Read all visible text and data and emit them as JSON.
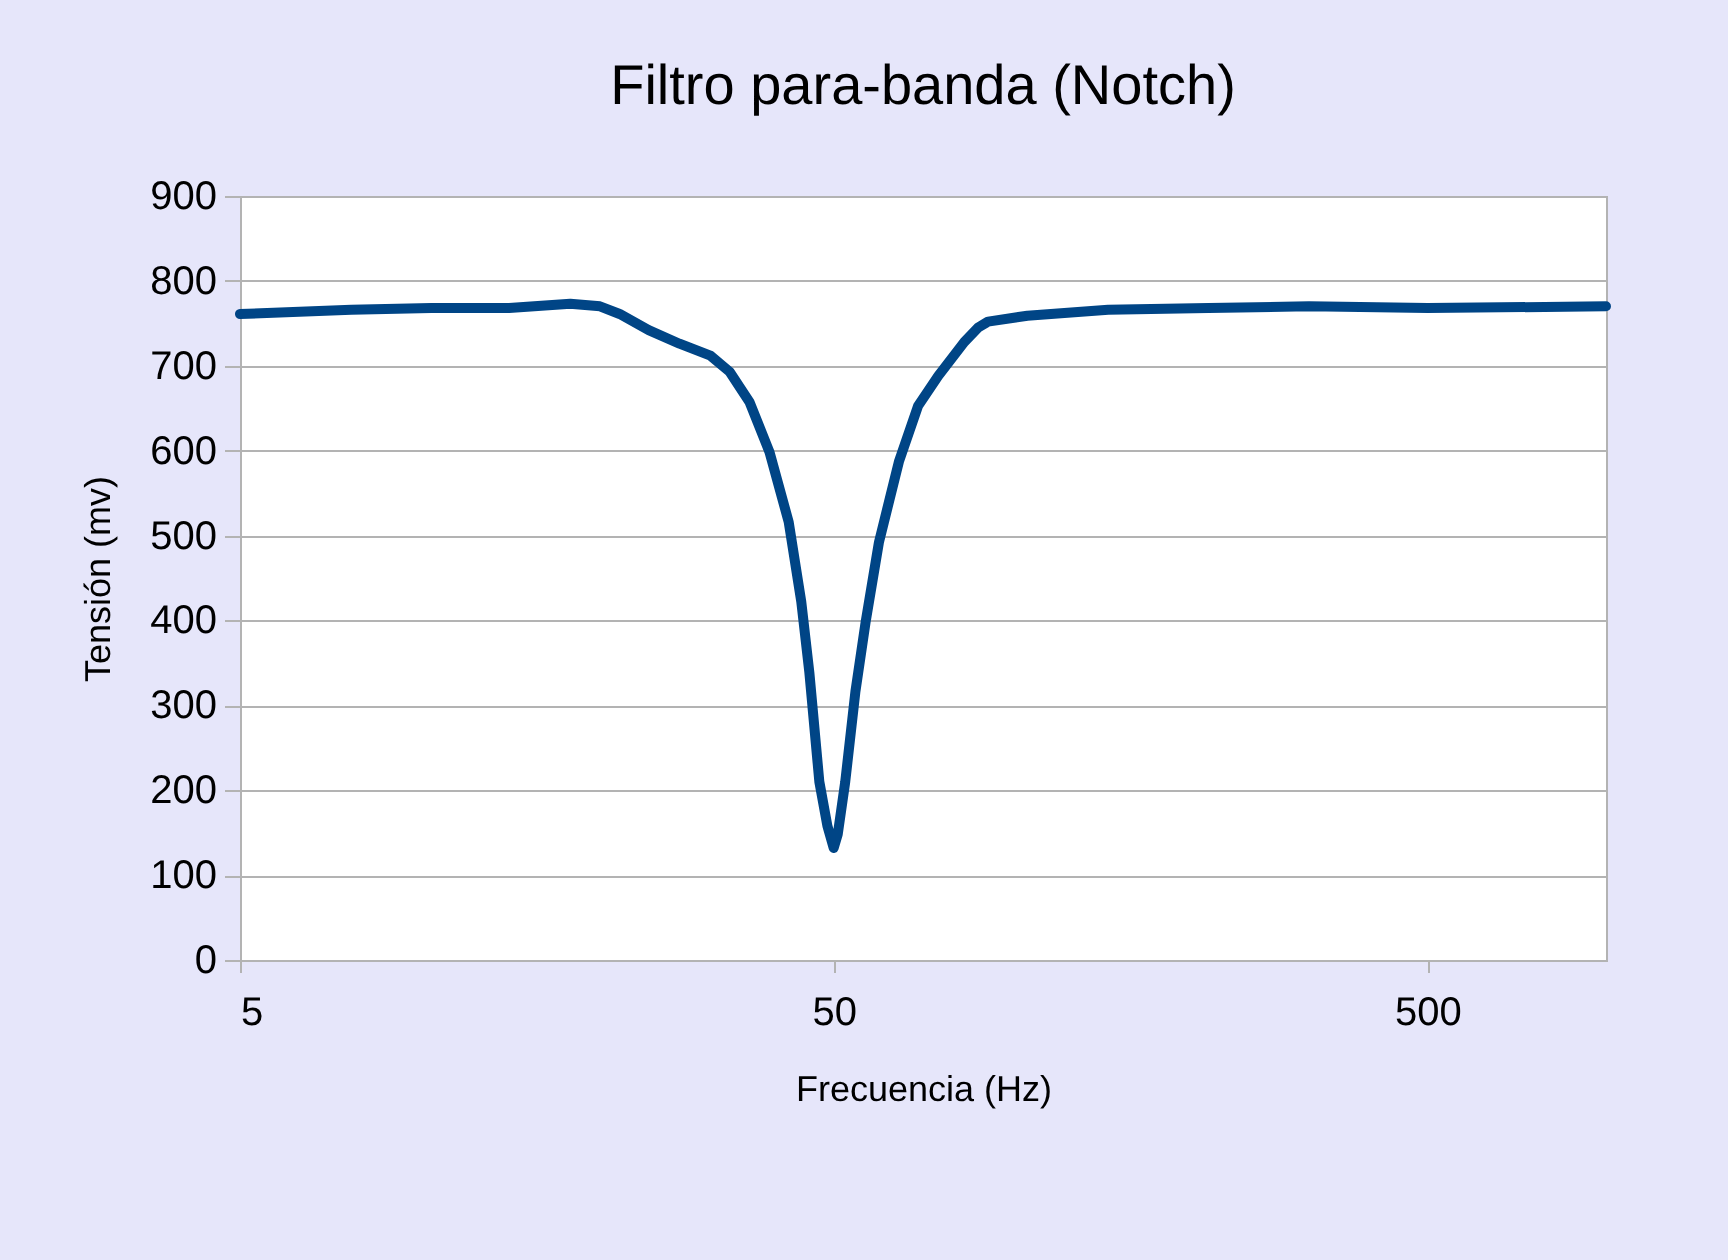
{
  "chart_data": {
    "type": "line",
    "title": "Filtro para-banda (Notch)",
    "xlabel": "Frecuencia (Hz)",
    "ylabel": "Tensión (mv)",
    "x": [
      5,
      7.7,
      10.5,
      14.2,
      18,
      20.2,
      21.8,
      24.4,
      27.5,
      31,
      33.4,
      36.1,
      39,
      42,
      44.1,
      45.5,
      47.3,
      48.8,
      50,
      50.8,
      52.3,
      54.4,
      56.6,
      59.6,
      64.4,
      69.4,
      75,
      83,
      87.6,
      91,
      106,
      145,
      214,
      316,
      501,
      1000
    ],
    "series": [
      {
        "color": "#004586",
        "values": [
          761,
          766,
          768,
          768,
          773,
          770,
          761,
          742,
          726,
          712,
          693,
          657,
          598,
          516,
          422,
          339,
          210,
          158,
          132,
          148,
          210,
          316,
          398,
          492,
          587,
          653,
          688,
          728,
          745,
          752,
          759,
          766,
          768,
          770,
          768,
          770
        ]
      }
    ],
    "log": "x",
    "xlim": [
      5,
      1000
    ],
    "xticks": [
      5,
      50,
      500
    ],
    "ylim": [
      0,
      900
    ],
    "yticks": [
      0,
      100,
      200,
      300,
      400,
      500,
      600,
      700,
      800,
      900
    ],
    "grid": "y",
    "marker": "none",
    "line_style": "solid"
  }
}
